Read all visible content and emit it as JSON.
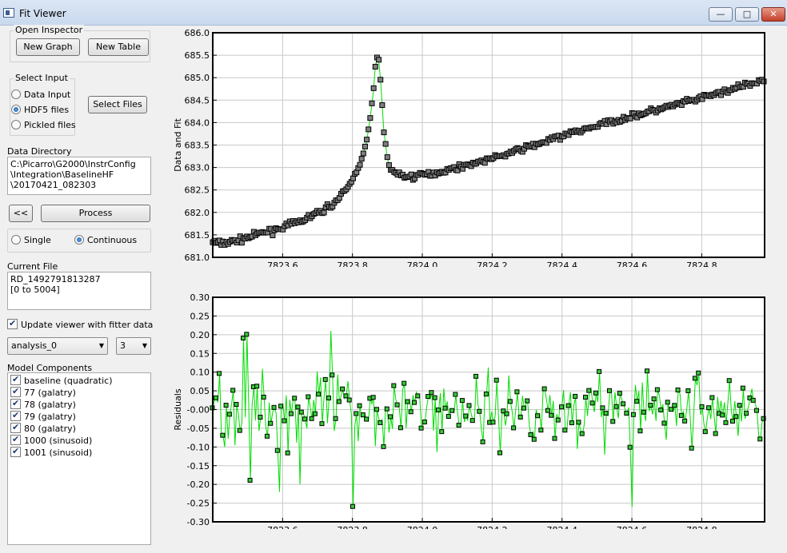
{
  "window": {
    "title": "Fit Viewer",
    "minimize": "—",
    "maximize": "□",
    "close": "✕"
  },
  "open_inspector": {
    "title": "Open Inspector",
    "new_graph": "New Graph",
    "new_table": "New Table"
  },
  "select_input": {
    "title": "Select Input",
    "options": [
      {
        "label": "Data Input",
        "selected": false
      },
      {
        "label": "HDF5 files",
        "selected": true
      },
      {
        "label": "Pickled files",
        "selected": false
      }
    ],
    "select_files": "Select Files"
  },
  "data_directory": {
    "label": "Data Directory",
    "lines": [
      "C:\\Picarro\\G2000\\InstrConfig",
      "\\Integration\\BaselineHF",
      "\\20170421_082303"
    ]
  },
  "process": {
    "back": "<<",
    "process": "Process"
  },
  "mode": {
    "single": "Single",
    "continuous": "Continuous",
    "selected": "continuous"
  },
  "current_file": {
    "label": "Current File",
    "lines": [
      "RD_1492791813287",
      "[0 to 5004]"
    ]
  },
  "update_viewer": {
    "label": "Update viewer with fitter data",
    "checked": true
  },
  "analysis_select": {
    "value": "analysis_0"
  },
  "index_select": {
    "value": "3"
  },
  "model_components": {
    "label": "Model Components",
    "items": [
      {
        "label": "baseline (quadratic)",
        "checked": true
      },
      {
        "label": "77 (galatry)",
        "checked": true
      },
      {
        "label": "78 (galatry)",
        "checked": true
      },
      {
        "label": "79 (galatry)",
        "checked": true
      },
      {
        "label": "80 (galatry)",
        "checked": true
      },
      {
        "label": "1000 (sinusoid)",
        "checked": true
      },
      {
        "label": "1001 (sinusoid)",
        "checked": true
      }
    ]
  },
  "colors": {
    "marker_fill": "#7f7f7f",
    "fit_line": "#00dd00",
    "residual_marker": "#33cc33",
    "grid": "#c8c8c8"
  },
  "chart_data": [
    {
      "type": "scatter",
      "title": "",
      "xlabel": "",
      "ylabel": "Data and Fit",
      "xlim": [
        7823.4,
        7824.98
      ],
      "ylim": [
        681.0,
        686.0
      ],
      "xticks": [
        "7823.6",
        "7823.8",
        "7824.0",
        "7824.2",
        "7824.4",
        "7824.6",
        "7824.8"
      ],
      "yticks": [
        "681.0",
        "681.5",
        "682.0",
        "682.5",
        "683.0",
        "683.5",
        "684.0",
        "684.5",
        "685.0",
        "685.5",
        "686.0"
      ],
      "grid": true,
      "series": [
        {
          "values": [
            [
              7823.4,
              681.35
            ],
            [
              7823.42,
              681.3
            ],
            [
              7823.44,
              681.33
            ],
            [
              7823.46,
              681.36
            ],
            [
              7823.48,
              681.4
            ],
            [
              7823.5,
              681.44
            ],
            [
              7823.52,
              681.49
            ],
            [
              7823.54,
              681.54
            ],
            [
              7823.56,
              681.58
            ],
            [
              7823.58,
              681.62
            ],
            [
              7823.6,
              681.67
            ],
            [
              7823.62,
              681.72
            ],
            [
              7823.64,
              681.77
            ],
            [
              7823.66,
              681.83
            ],
            [
              7823.68,
              681.91
            ],
            [
              7823.7,
              681.98
            ],
            [
              7823.72,
              682.07
            ],
            [
              7823.74,
              682.17
            ],
            [
              7823.76,
              682.3
            ],
            [
              7823.78,
              682.48
            ],
            [
              7823.8,
              682.72
            ],
            [
              7823.82,
              683.05
            ],
            [
              7823.84,
              683.55
            ],
            [
              7823.85,
              684.05
            ],
            [
              7823.86,
              684.7
            ],
            [
              7823.865,
              685.2
            ],
            [
              7823.87,
              685.45
            ],
            [
              7823.875,
              685.4
            ],
            [
              7823.88,
              685.0
            ],
            [
              7823.885,
              684.4
            ],
            [
              7823.89,
              683.8
            ],
            [
              7823.9,
              683.2
            ],
            [
              7823.91,
              682.95
            ],
            [
              7823.93,
              682.85
            ],
            [
              7823.95,
              682.8
            ],
            [
              7823.97,
              682.8
            ],
            [
              7824.0,
              682.83
            ],
            [
              7824.05,
              682.9
            ],
            [
              7824.1,
              683.0
            ],
            [
              7824.15,
              683.1
            ],
            [
              7824.2,
              683.2
            ],
            [
              7824.25,
              683.32
            ],
            [
              7824.3,
              683.45
            ],
            [
              7824.35,
              683.57
            ],
            [
              7824.4,
              683.7
            ],
            [
              7824.45,
              683.82
            ],
            [
              7824.5,
              683.93
            ],
            [
              7824.55,
              684.04
            ],
            [
              7824.6,
              684.14
            ],
            [
              7824.65,
              684.24
            ],
            [
              7824.7,
              684.34
            ],
            [
              7824.75,
              684.44
            ],
            [
              7824.8,
              684.55
            ],
            [
              7824.85,
              684.66
            ],
            [
              7824.9,
              684.77
            ],
            [
              7824.95,
              684.88
            ],
            [
              7824.98,
              684.96
            ]
          ]
        }
      ]
    },
    {
      "type": "line",
      "title": "",
      "xlabel": "",
      "ylabel": "Residuals",
      "xlim": [
        7823.4,
        7824.98
      ],
      "ylim": [
        -0.3,
        0.3
      ],
      "xticks": [
        "7823.6",
        "7823.8",
        "7824.0",
        "7824.2",
        "7824.4",
        "7824.6",
        "7824.8"
      ],
      "yticks": [
        "-0.30",
        "-0.25",
        "-0.20",
        "-0.15",
        "-0.10",
        "-0.05",
        "-0.00",
        "0.05",
        "0.10",
        "0.15",
        "0.20",
        "0.25",
        "0.30"
      ],
      "grid": true,
      "notable_points": [
        {
          "x": 7823.49,
          "y": 0.19
        },
        {
          "x": 7823.5,
          "y": 0.2
        },
        {
          "x": 7823.51,
          "y": -0.19
        },
        {
          "x": 7823.59,
          "y": -0.22
        },
        {
          "x": 7823.65,
          "y": -0.2
        },
        {
          "x": 7823.74,
          "y": 0.21
        },
        {
          "x": 7823.8,
          "y": -0.26
        },
        {
          "x": 7824.6,
          "y": -0.26
        }
      ]
    }
  ]
}
